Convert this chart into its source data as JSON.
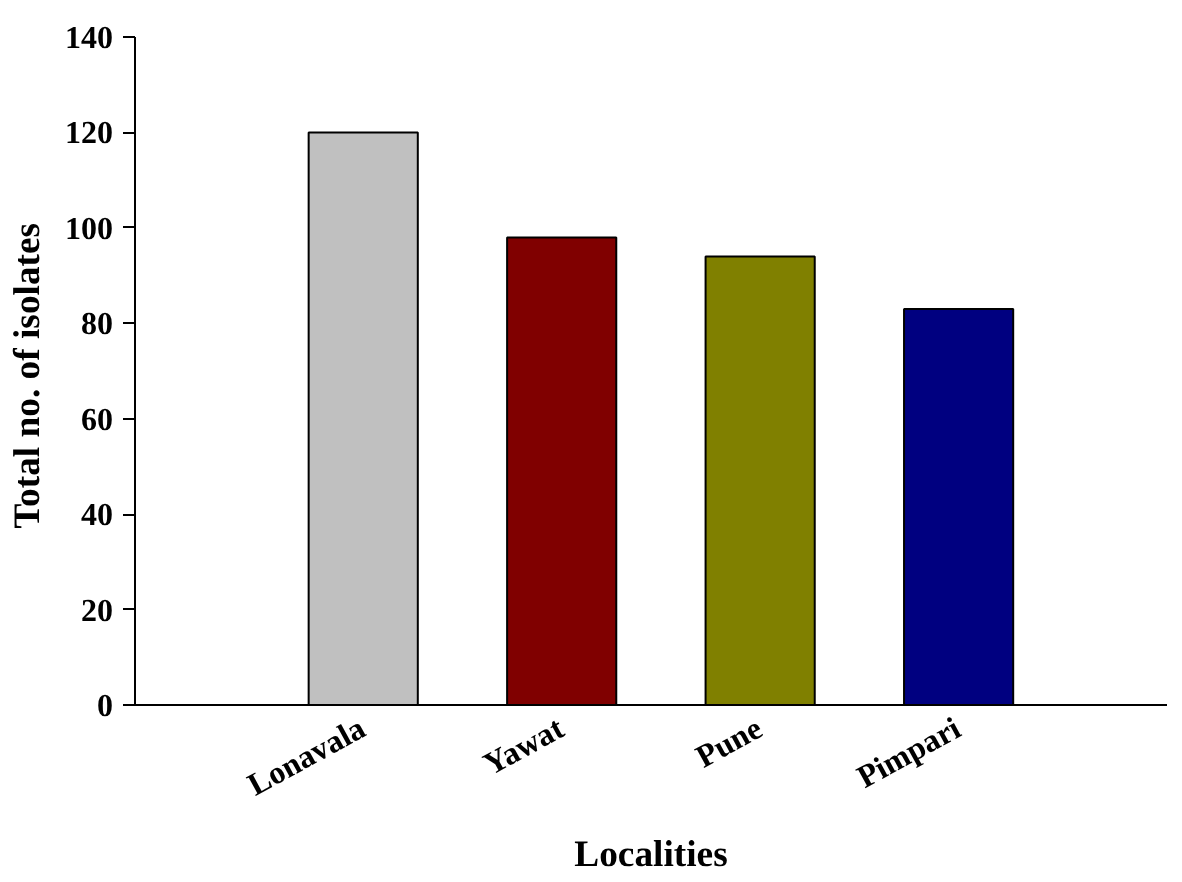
{
  "chart_data": {
    "type": "bar",
    "xlabel": "Localities",
    "ylabel": "Total no. of  isolates",
    "categories": [
      "Lonavala",
      "Yawat",
      "Pune",
      "Pimpari"
    ],
    "values": [
      120,
      98,
      94,
      83
    ],
    "colors": [
      "#c0c0c0",
      "#800000",
      "#808000",
      "#000080"
    ],
    "ylim": [
      0,
      140
    ],
    "yticks": [
      0,
      20,
      40,
      60,
      80,
      100,
      120,
      140
    ],
    "grid": false
  }
}
